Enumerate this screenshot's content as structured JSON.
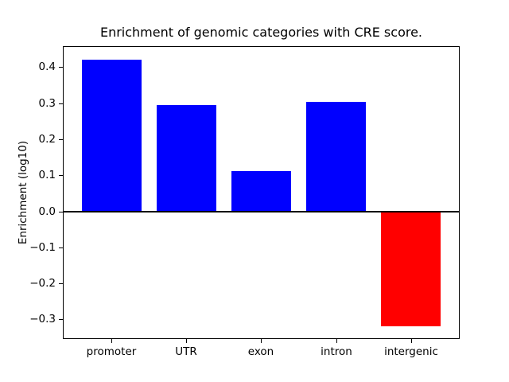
{
  "chart_data": {
    "type": "bar",
    "title": "Enrichment of genomic categories with CRE score.",
    "xlabel": "",
    "ylabel": "Enrichment (log10)",
    "categories": [
      "promoter",
      "UTR",
      "exon",
      "intron",
      "intergenic"
    ],
    "values": [
      0.42,
      0.296,
      0.111,
      0.304,
      -0.318
    ],
    "bar_colors": [
      "#0000ff",
      "#0000ff",
      "#0000ff",
      "#0000ff",
      "#ff0000"
    ],
    "positive_color": "#0000ff",
    "negative_color": "#ff0000",
    "ylim": [
      -0.352,
      0.456
    ],
    "yticks": [
      0.4,
      0.3,
      0.2,
      0.1,
      0.0,
      -0.1,
      -0.2,
      -0.3
    ],
    "ytick_labels": [
      "0.4",
      "0.3",
      "0.2",
      "0.1",
      "0.0",
      "−0.1",
      "−0.2",
      "−0.3"
    ],
    "bar_width_fraction": 0.8,
    "grid": false,
    "legend": null,
    "zero_line": true,
    "axis_color": "#000000",
    "background_color": "#ffffff"
  }
}
